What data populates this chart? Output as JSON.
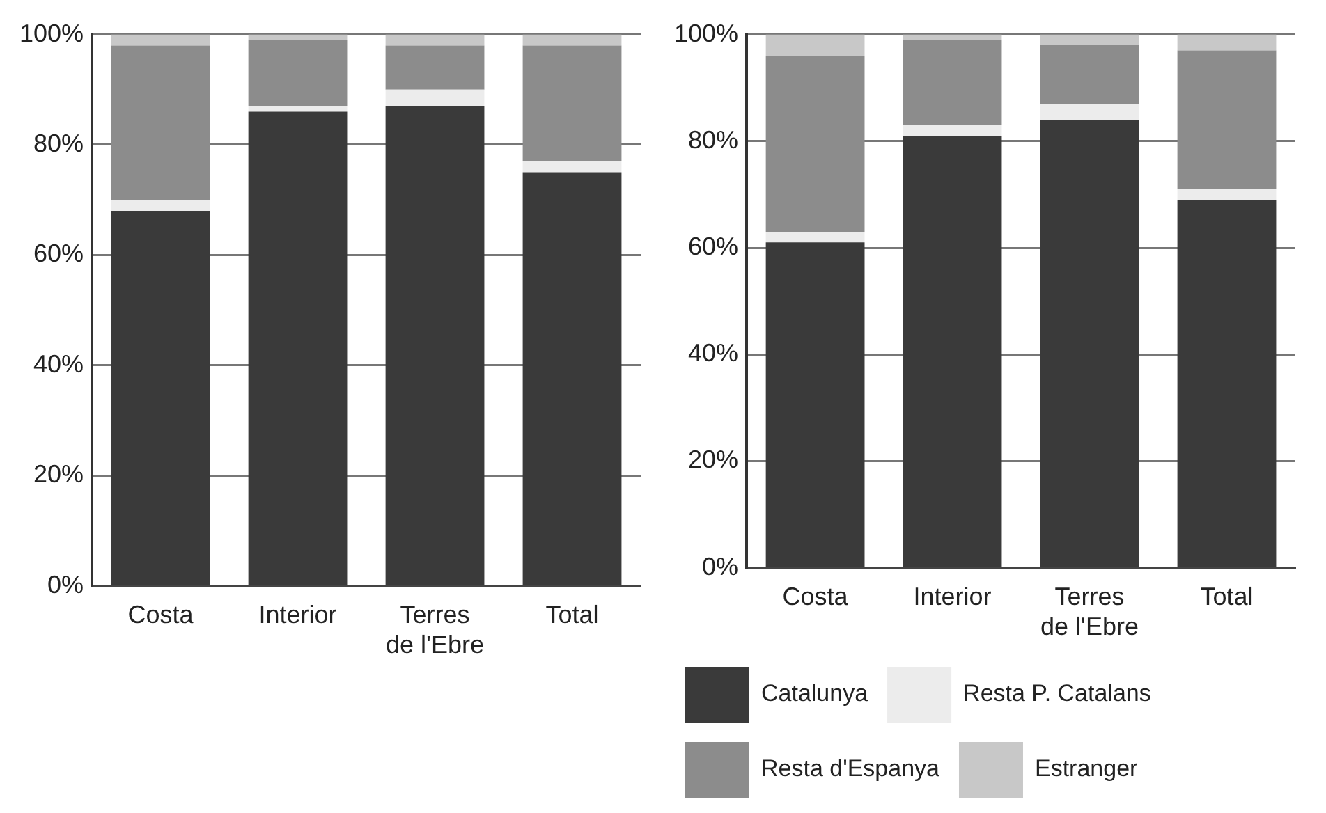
{
  "chart_data": [
    {
      "type": "bar",
      "stacked": true,
      "categories": [
        "Costa",
        "Interior",
        "Terres de l'Ebre",
        "Total"
      ],
      "series": [
        {
          "color": "#3a3a3a",
          "values": [
            68,
            86,
            87,
            75
          ]
        },
        {
          "color": "#ececec",
          "values": [
            2,
            1,
            3,
            2
          ]
        },
        {
          "color": "#8c8c8c",
          "values": [
            28,
            12,
            8,
            21
          ]
        },
        {
          "color": "#c8c8c8",
          "values": [
            2,
            1,
            2,
            2
          ]
        }
      ],
      "ylim": [
        0,
        100
      ],
      "yticks": [
        {
          "value": 0,
          "label": "0%"
        },
        {
          "value": 20,
          "label": "20%"
        },
        {
          "value": 40,
          "label": "40%"
        },
        {
          "value": 60,
          "label": "60%"
        },
        {
          "value": 80,
          "label": "80%"
        },
        {
          "value": 100,
          "label": "100%"
        }
      ],
      "grid": "y",
      "legend": false
    },
    {
      "type": "bar",
      "stacked": true,
      "categories": [
        "Costa",
        "Interior",
        "Terres de l'Ebre",
        "Total"
      ],
      "series": [
        {
          "name": "Catalunya",
          "color": "#3a3a3a",
          "values": [
            61,
            81,
            84,
            69
          ]
        },
        {
          "name": "Resta P. Catalans",
          "color": "#ececec",
          "values": [
            2,
            2,
            3,
            2
          ]
        },
        {
          "name": "Resta d'Espanya",
          "color": "#8c8c8c",
          "values": [
            33,
            16,
            11,
            26
          ]
        },
        {
          "name": "Estranger",
          "color": "#c8c8c8",
          "values": [
            4,
            1,
            2,
            3
          ]
        }
      ],
      "ylim": [
        0,
        100
      ],
      "yticks": [
        {
          "value": 0,
          "label": "0%"
        },
        {
          "value": 20,
          "label": "20%"
        },
        {
          "value": 40,
          "label": "40%"
        },
        {
          "value": 60,
          "label": "60%"
        },
        {
          "value": 80,
          "label": "80%"
        },
        {
          "value": 100,
          "label": "100%"
        }
      ],
      "grid": "y",
      "legend": "bottom"
    }
  ]
}
